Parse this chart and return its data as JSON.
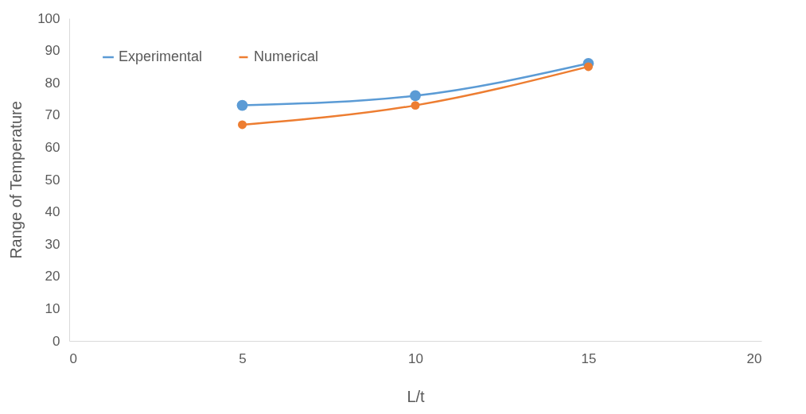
{
  "chart_data": {
    "type": "line",
    "xlabel": "L/t",
    "ylabel": "Range of Temperature",
    "x": [
      5,
      10,
      15
    ],
    "series": [
      {
        "name": "Experimental",
        "color": "#5b9bd5",
        "values": [
          73,
          76,
          86
        ]
      },
      {
        "name": "Numerical",
        "color": "#ed7d31",
        "values": [
          67,
          73,
          85
        ]
      }
    ],
    "xlim": [
      0,
      20
    ],
    "xticks": [
      0,
      5,
      10,
      15,
      20
    ],
    "ylim": [
      0,
      100
    ],
    "yticks": [
      0,
      10,
      20,
      30,
      40,
      50,
      60,
      70,
      80,
      90,
      100
    ],
    "grid": false,
    "legend": "top left",
    "marker": "circle",
    "line_style": "solid"
  }
}
